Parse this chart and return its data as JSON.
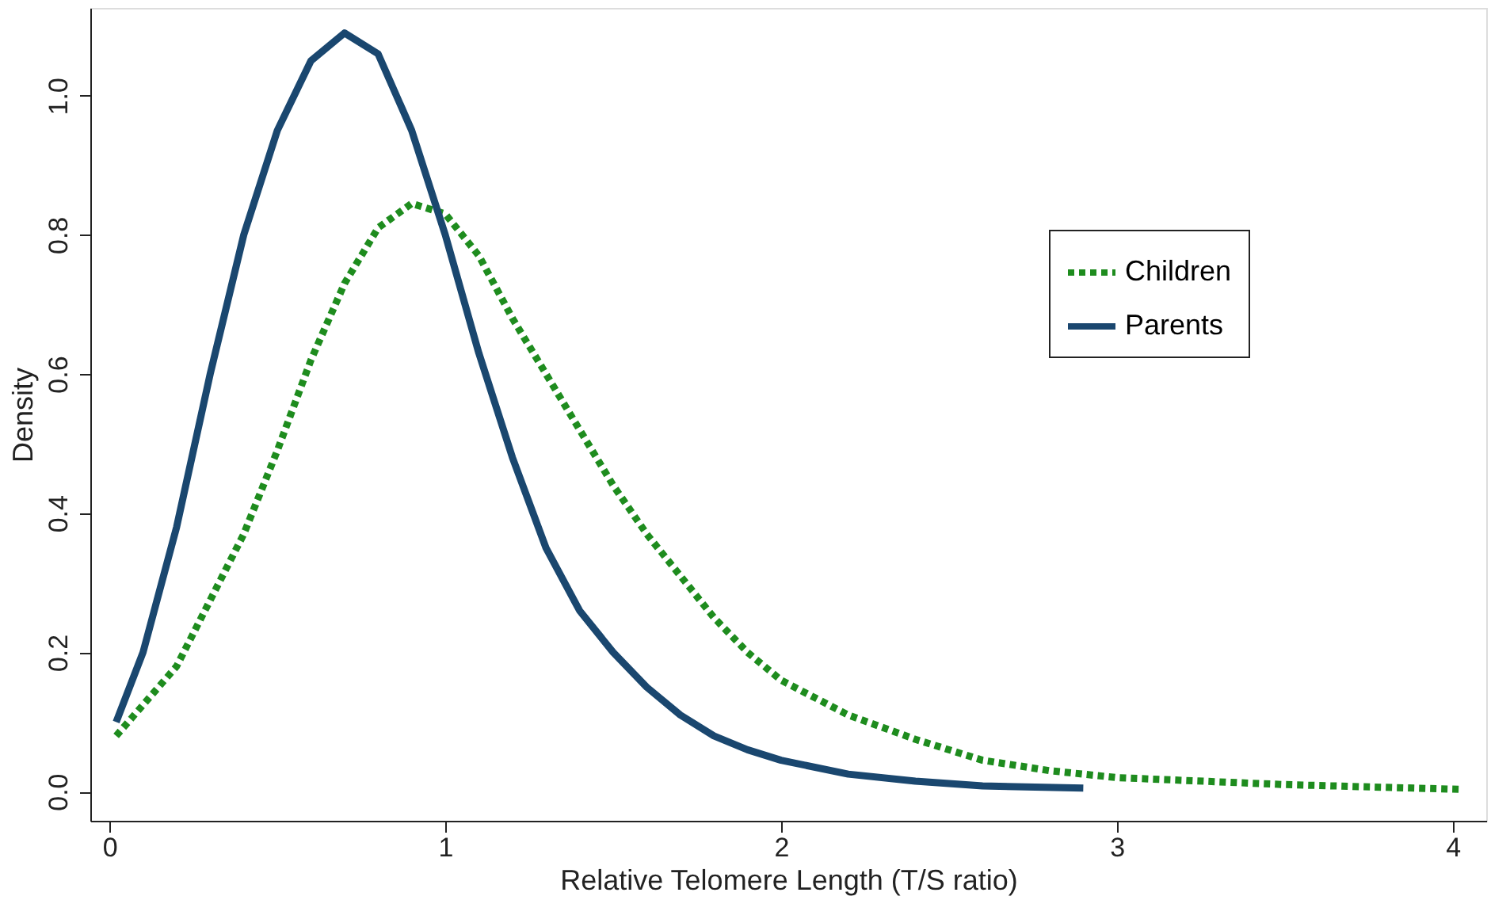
{
  "chart_data": {
    "type": "line",
    "xlabel": "Relative Telomere Length (T/S ratio)",
    "ylabel": "Density",
    "xlim": [
      -0.057,
      4.1
    ],
    "ylim": [
      -0.042,
      1.126
    ],
    "xticks": [
      0,
      1,
      2,
      3,
      4
    ],
    "yticks": [
      {
        "value": 0,
        "label": "0.0"
      },
      {
        "value": 0.2,
        "label": "0.2"
      },
      {
        "value": 0.4,
        "label": "0.4"
      },
      {
        "value": 0.6,
        "label": "0.6"
      },
      {
        "value": 0.8,
        "label": "0.8"
      },
      {
        "value": 1,
        "label": "1.0"
      }
    ],
    "grid": false,
    "legend": "top right",
    "marker": "none",
    "series": [
      {
        "name": "Children",
        "color": "#1e8c1e",
        "line_style": "dotted",
        "x": [
          0.02,
          0.2,
          0.4,
          0.5,
          0.6,
          0.7,
          0.8,
          0.9,
          1.0,
          1.1,
          1.2,
          1.3,
          1.4,
          1.5,
          1.6,
          1.7,
          1.8,
          1.9,
          2.0,
          2.2,
          2.4,
          2.6,
          2.8,
          3.0,
          3.5,
          4.03
        ],
        "values": [
          0.08,
          0.18,
          0.37,
          0.49,
          0.62,
          0.73,
          0.81,
          0.845,
          0.83,
          0.77,
          0.68,
          0.6,
          0.52,
          0.44,
          0.37,
          0.31,
          0.25,
          0.2,
          0.16,
          0.11,
          0.075,
          0.045,
          0.03,
          0.02,
          0.01,
          0.003
        ]
      },
      {
        "name": "Parents",
        "color": "#1a476f",
        "line_style": "solid",
        "x": [
          0.02,
          0.1,
          0.2,
          0.3,
          0.4,
          0.5,
          0.6,
          0.7,
          0.8,
          0.9,
          1.0,
          1.1,
          1.2,
          1.3,
          1.4,
          1.5,
          1.6,
          1.7,
          1.8,
          1.9,
          2.0,
          2.2,
          2.4,
          2.6,
          2.9
        ],
        "values": [
          0.1,
          0.2,
          0.38,
          0.6,
          0.8,
          0.95,
          1.05,
          1.09,
          1.06,
          0.95,
          0.8,
          0.63,
          0.48,
          0.35,
          0.26,
          0.2,
          0.15,
          0.11,
          0.08,
          0.06,
          0.045,
          0.025,
          0.015,
          0.008,
          0.005
        ]
      }
    ]
  }
}
